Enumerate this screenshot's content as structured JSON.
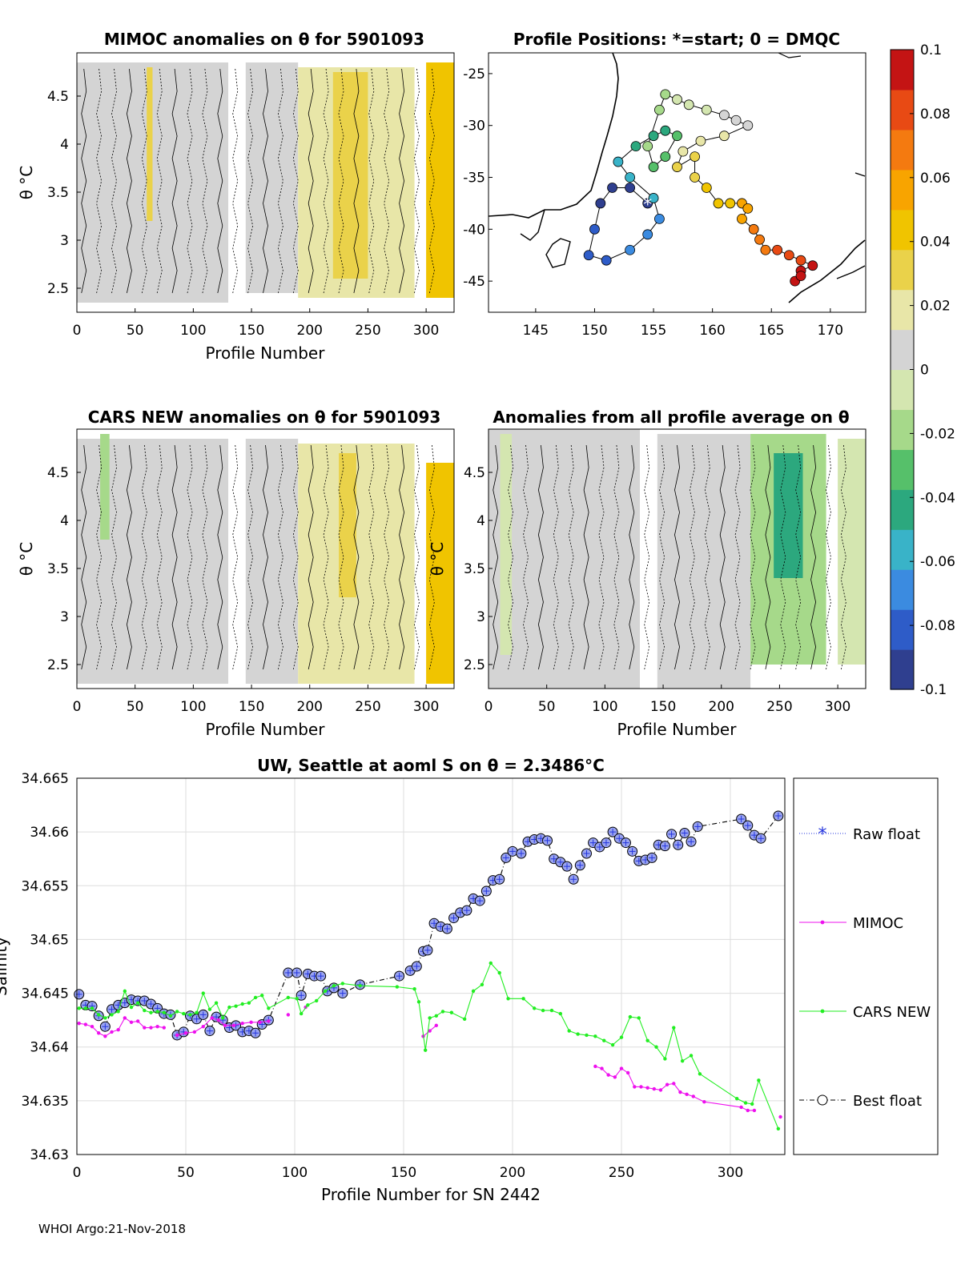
{
  "footer": "WHOI Argo:21-Nov-2018",
  "colors": {
    "raw_float": "#2233dd",
    "best_float": "#000000",
    "mimoc": "#ee11ee",
    "cars": "#22ee22"
  },
  "panels": {
    "mimoc_title": "MIMOC anomalies on θ  for 5901093",
    "map_title": "Profile Positions: *=start; 0 = DMQC",
    "cars_title": "CARS NEW anomalies on θ for 5901093",
    "allavg_title": "Anomalies from all profile average on θ",
    "theta_ylabel": "θ °C",
    "profile_xlabel": "Profile Number"
  },
  "chart_data": [
    {
      "type": "heatmap",
      "id": "mimoc",
      "title": "MIMOC anomalies on θ  for 5901093",
      "xlabel": "Profile Number",
      "ylabel": "θ °C",
      "xlim": [
        0,
        324
      ],
      "ylim": [
        2.25,
        4.95
      ],
      "xticks": [
        "0",
        "50",
        "100",
        "150",
        "200",
        "250",
        "300"
      ],
      "yticks": [
        "2.5",
        "3",
        "3.5",
        "4",
        "4.5"
      ],
      "bands": [
        {
          "x0": 0,
          "x1": 130,
          "y0": 2.35,
          "y1": 4.85,
          "anomaly": 0.005
        },
        {
          "x0": 60,
          "x1": 65,
          "y0": 3.2,
          "y1": 4.8,
          "anomaly": 0.025
        },
        {
          "x0": 145,
          "x1": 190,
          "y0": 2.45,
          "y1": 4.85,
          "anomaly": 0.004
        },
        {
          "x0": 190,
          "x1": 290,
          "y0": 2.4,
          "y1": 4.8,
          "anomaly": 0.024
        },
        {
          "x0": 220,
          "x1": 250,
          "y0": 2.6,
          "y1": 4.75,
          "anomaly": 0.035
        },
        {
          "x0": 300,
          "x1": 324,
          "y0": 2.4,
          "y1": 4.85,
          "anomaly": 0.038
        }
      ]
    },
    {
      "type": "scatter",
      "id": "map",
      "title": "Profile Positions: *=start; 0 = DMQC",
      "xlim": [
        141,
        173
      ],
      "ylim": [
        -48,
        -23
      ],
      "xticks": [
        "145",
        "150",
        "155",
        "160",
        "165",
        "170"
      ],
      "yticks": [
        "-25",
        "-30",
        "-35",
        "-40",
        "-45"
      ],
      "track": [
        [
          154.5,
          -37.5
        ],
        [
          153,
          -36
        ],
        [
          151.5,
          -36
        ],
        [
          150.5,
          -37.5
        ],
        [
          150,
          -40
        ],
        [
          149.5,
          -42.5
        ],
        [
          151,
          -43
        ],
        [
          153,
          -42
        ],
        [
          154.5,
          -40.5
        ],
        [
          155.5,
          -39
        ],
        [
          155,
          -37
        ],
        [
          153,
          -35
        ],
        [
          152,
          -33.5
        ],
        [
          153.5,
          -32
        ],
        [
          155,
          -31
        ],
        [
          156,
          -30.5
        ],
        [
          157,
          -31
        ],
        [
          156,
          -33
        ],
        [
          155,
          -34
        ],
        [
          154.5,
          -32
        ],
        [
          155.5,
          -28.5
        ],
        [
          156,
          -27
        ],
        [
          157,
          -27.5
        ],
        [
          158,
          -28
        ],
        [
          159.5,
          -28.5
        ],
        [
          161,
          -29
        ],
        [
          162,
          -29.5
        ],
        [
          163,
          -30
        ],
        [
          161,
          -31
        ],
        [
          159,
          -31.5
        ],
        [
          157.5,
          -32.5
        ],
        [
          157,
          -34
        ],
        [
          158.5,
          -33
        ],
        [
          158.5,
          -35
        ],
        [
          159.5,
          -36
        ],
        [
          160.5,
          -37.5
        ],
        [
          161.5,
          -37.5
        ],
        [
          162.5,
          -37.5
        ],
        [
          163,
          -38
        ],
        [
          162.5,
          -39
        ],
        [
          163.5,
          -40
        ],
        [
          164,
          -41
        ],
        [
          164.5,
          -42
        ],
        [
          165.5,
          -42
        ],
        [
          166.5,
          -42.5
        ],
        [
          167.5,
          -43
        ],
        [
          168.5,
          -43.5
        ],
        [
          167.5,
          -44
        ],
        [
          167,
          -45
        ],
        [
          167.5,
          -44.5
        ]
      ],
      "start": [
        154.5,
        -37.5
      ]
    },
    {
      "type": "heatmap",
      "id": "cars",
      "title": "CARS NEW anomalies on θ for 5901093",
      "xlabel": "Profile Number",
      "ylabel": "θ °C",
      "xlim": [
        0,
        324
      ],
      "ylim": [
        2.25,
        4.95
      ],
      "xticks": [
        "0",
        "50",
        "100",
        "150",
        "200",
        "250",
        "300"
      ],
      "yticks": [
        "2.5",
        "3",
        "3.5",
        "4",
        "4.5"
      ],
      "bands": [
        {
          "x0": 0,
          "x1": 130,
          "y0": 2.3,
          "y1": 4.85,
          "anomaly": 0.002
        },
        {
          "x0": 20,
          "x1": 28,
          "y0": 3.8,
          "y1": 4.9,
          "anomaly": -0.015
        },
        {
          "x0": 145,
          "x1": 190,
          "y0": 2.3,
          "y1": 4.85,
          "anomaly": 0.003
        },
        {
          "x0": 190,
          "x1": 290,
          "y0": 2.3,
          "y1": 4.8,
          "anomaly": 0.02
        },
        {
          "x0": 225,
          "x1": 240,
          "y0": 3.2,
          "y1": 4.7,
          "anomaly": 0.032
        },
        {
          "x0": 300,
          "x1": 324,
          "y0": 2.3,
          "y1": 4.6,
          "anomaly": 0.038
        }
      ]
    },
    {
      "type": "heatmap",
      "id": "allavg",
      "title": "Anomalies from all profile average on θ",
      "xlabel": "Profile Number",
      "xlim": [
        0,
        324
      ],
      "ylim": [
        2.25,
        4.95
      ],
      "xticks": [
        "0",
        "50",
        "100",
        "150",
        "200",
        "250",
        "300"
      ],
      "yticks": [
        "2.5",
        "3",
        "3.5",
        "4",
        "4.5"
      ],
      "bands": [
        {
          "x0": 0,
          "x1": 130,
          "y0": 2.25,
          "y1": 4.95,
          "anomaly": 0.003
        },
        {
          "x0": 10,
          "x1": 20,
          "y0": 2.6,
          "y1": 4.9,
          "anomaly": -0.012
        },
        {
          "x0": 145,
          "x1": 225,
          "y0": 2.25,
          "y1": 4.9,
          "anomaly": 0.008
        },
        {
          "x0": 225,
          "x1": 290,
          "y0": 2.5,
          "y1": 4.9,
          "anomaly": -0.025
        },
        {
          "x0": 245,
          "x1": 270,
          "y0": 3.4,
          "y1": 4.7,
          "anomaly": -0.05
        },
        {
          "x0": 300,
          "x1": 324,
          "y0": 2.5,
          "y1": 4.85,
          "anomaly": -0.01
        }
      ]
    },
    {
      "type": "line",
      "id": "salinity",
      "title": "UW, Seattle at aoml S on θ = 2.3486°C",
      "xlabel": "Profile Number for SN 2442",
      "ylabel": "Salinity",
      "xlim": [
        0,
        325
      ],
      "ylim": [
        34.63,
        34.665
      ],
      "xticks": [
        "0",
        "50",
        "100",
        "150",
        "200",
        "250",
        "300"
      ],
      "yticks": [
        "34.63",
        "34.635",
        "34.64",
        "34.645",
        "34.65",
        "34.655",
        "34.66",
        "34.665"
      ],
      "series": [
        {
          "name": "Best float",
          "style": "dashdot-circle",
          "x": [
            1,
            4,
            7,
            10,
            13,
            16,
            19,
            22,
            25,
            28,
            31,
            34,
            37,
            40,
            43,
            46,
            49,
            52,
            55,
            58,
            61,
            64,
            67,
            70,
            73,
            76,
            79,
            82,
            85,
            88,
            97,
            101,
            103,
            106,
            109,
            112,
            115,
            118,
            122,
            130,
            148,
            153,
            156,
            159,
            161,
            164,
            167,
            170,
            173,
            176,
            179,
            182,
            185,
            188,
            191,
            194,
            197,
            200,
            204,
            207,
            210,
            213,
            216,
            219,
            222,
            225,
            228,
            231,
            234,
            237,
            240,
            243,
            246,
            249,
            252,
            255,
            258,
            261,
            264,
            267,
            270,
            273,
            276,
            279,
            282,
            285,
            305,
            308,
            311,
            314,
            322
          ],
          "y": [
            34.6449,
            34.6439,
            34.6438,
            34.6429,
            34.6419,
            34.6435,
            34.6439,
            34.6441,
            34.6444,
            34.6443,
            34.6443,
            34.644,
            34.6436,
            34.6431,
            34.643,
            34.6411,
            34.6414,
            34.6429,
            34.6426,
            34.643,
            34.6415,
            34.6428,
            34.6425,
            34.6418,
            34.642,
            34.6414,
            34.6415,
            34.6413,
            34.6421,
            34.6425,
            34.6469,
            34.6469,
            34.6448,
            34.6468,
            34.6466,
            34.6466,
            34.6452,
            34.6455,
            34.645,
            34.6458,
            34.6466,
            34.6471,
            34.6475,
            34.6489,
            34.649,
            34.6515,
            34.6512,
            34.651,
            34.652,
            34.6525,
            34.6527,
            34.6538,
            34.6536,
            34.6545,
            34.6555,
            34.6556,
            34.6576,
            34.6582,
            34.658,
            34.6591,
            34.6593,
            34.6594,
            34.6592,
            34.6575,
            34.6572,
            34.6568,
            34.6556,
            34.6569,
            34.658,
            34.659,
            34.6586,
            34.659,
            34.66,
            34.6594,
            34.659,
            34.6582,
            34.6573,
            34.6574,
            34.6576,
            34.6588,
            34.6587,
            34.6598,
            34.6588,
            34.6599,
            34.6591,
            34.6605,
            34.6612,
            34.6606,
            34.6597,
            34.6594,
            34.6615
          ]
        },
        {
          "name": "MIMOC",
          "style": "line-dot",
          "segments": [
            {
              "x": [
                1,
                4,
                7,
                10,
                13,
                16,
                19,
                22,
                25,
                28,
                31,
                34,
                37,
                40
              ],
              "y": [
                34.6422,
                34.6421,
                34.6419,
                34.6413,
                34.641,
                34.6414,
                34.6416,
                34.6427,
                34.6423,
                34.6424,
                34.6418,
                34.6418,
                34.6419,
                34.6418
              ]
            },
            {
              "x": [
                46,
                50,
                54,
                58,
                62,
                65,
                68,
                72,
                76,
                80,
                84,
                88
              ],
              "y": [
                34.6411,
                34.6413,
                34.6414,
                34.6419,
                34.6427,
                34.6425,
                34.642,
                34.642,
                34.6422,
                34.6423,
                34.6423,
                34.6424
              ]
            },
            {
              "x": [
                97
              ],
              "y": [
                34.643
              ]
            },
            {
              "x": [
                105
              ],
              "y": [
                34.6437
              ]
            },
            {
              "x": [
                159,
                162,
                165
              ],
              "y": [
                34.641,
                34.6415,
                34.642
              ]
            },
            {
              "x": [
                238,
                241,
                244,
                247,
                250,
                253,
                256,
                259,
                262,
                265,
                268,
                271,
                274,
                277,
                280,
                283,
                288,
                305,
                308,
                311
              ],
              "y": [
                34.6382,
                34.638,
                34.6374,
                34.6372,
                34.638,
                34.6376,
                34.6363,
                34.6363,
                34.6362,
                34.6361,
                34.636,
                34.6365,
                34.6366,
                34.6358,
                34.6356,
                34.6354,
                34.6349,
                34.6344,
                34.6341,
                34.6341
              ]
            },
            {
              "x": [
                323
              ],
              "y": [
                34.6335
              ]
            }
          ]
        },
        {
          "name": "CARS NEW",
          "style": "line-dot",
          "x": [
            1,
            4,
            7,
            10,
            13,
            16,
            19,
            22,
            25,
            28,
            31,
            34,
            37,
            40,
            43,
            46,
            49,
            52,
            55,
            58,
            61,
            64,
            67,
            70,
            73,
            76,
            79,
            82,
            85,
            88,
            97,
            101,
            103,
            106,
            110,
            114,
            118,
            122,
            130,
            147,
            155,
            157,
            160,
            162,
            165,
            168,
            172,
            178,
            182,
            186,
            190,
            194,
            198,
            205,
            210,
            214,
            218,
            222,
            226,
            230,
            234,
            238,
            242,
            246,
            250,
            254,
            258,
            262,
            266,
            270,
            274,
            278,
            282,
            286,
            303,
            307,
            310,
            313,
            322
          ],
          "y": [
            34.6436,
            34.6436,
            34.6436,
            34.643,
            34.6427,
            34.643,
            34.6433,
            34.6452,
            34.6437,
            34.6441,
            34.6434,
            34.6432,
            34.6433,
            34.6432,
            34.6429,
            34.6433,
            34.6431,
            34.643,
            34.6432,
            34.645,
            34.6435,
            34.6441,
            34.6427,
            34.6437,
            34.6438,
            34.644,
            34.6441,
            34.6446,
            34.6448,
            34.6436,
            34.6446,
            34.6445,
            34.6431,
            34.6439,
            34.6443,
            34.6452,
            34.6457,
            34.6459,
            34.6457,
            34.6456,
            34.6454,
            34.6442,
            34.6397,
            34.6427,
            34.6429,
            34.6433,
            34.6432,
            34.6426,
            34.6452,
            34.6458,
            34.6478,
            34.6469,
            34.6445,
            34.6445,
            34.6436,
            34.6434,
            34.6434,
            34.6431,
            34.6415,
            34.6412,
            34.6411,
            34.641,
            34.6406,
            34.6402,
            34.6409,
            34.6428,
            34.6427,
            34.6406,
            34.64,
            34.6389,
            34.6418,
            34.6387,
            34.6392,
            34.6375,
            34.6352,
            34.6348,
            34.6347,
            34.6369,
            34.6324
          ]
        },
        {
          "name": "Raw float",
          "style": "dotted-star",
          "x": [],
          "y": []
        }
      ],
      "legend": [
        "Raw float",
        "MIMOC",
        "CARS NEW",
        "Best float"
      ]
    }
  ],
  "colorbar": {
    "labels": [
      "0.1",
      "0.08",
      "0.06",
      "0.04",
      "0.02",
      "0",
      "-0.02",
      "-0.04",
      "-0.06",
      "-0.08",
      "-0.1"
    ],
    "range": [
      -0.1,
      0.1
    ],
    "colors": [
      "#2f3f8f",
      "#2e5cc8",
      "#3b8be0",
      "#39b3c8",
      "#2ca87e",
      "#56c06a",
      "#a6d98a",
      "#d4e6b0",
      "#d4d4d4",
      "#e8e6a8",
      "#ead24a",
      "#f0c400",
      "#f8a400",
      "#f47a10",
      "#e84a14",
      "#c41414"
    ]
  }
}
